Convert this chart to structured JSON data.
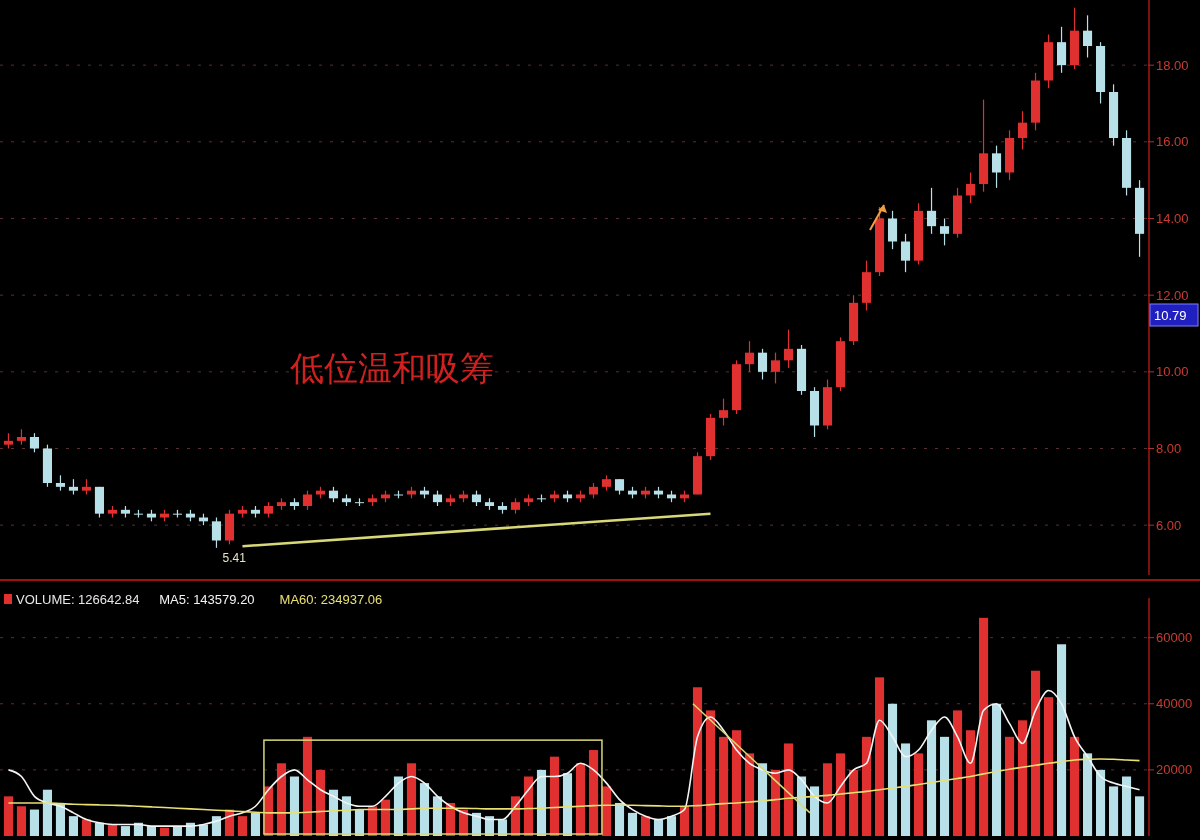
{
  "chart_data": [
    {
      "type": "candlestick",
      "categories": [
        null,
        null,
        null,
        null,
        null,
        null,
        null,
        null,
        null,
        null,
        null,
        null,
        null,
        null,
        null,
        null,
        null,
        null,
        null,
        null,
        null,
        null,
        null,
        null,
        null,
        null,
        null,
        null,
        null,
        null,
        null,
        null,
        null,
        null,
        null,
        null,
        null,
        null,
        null,
        null,
        null,
        null,
        null,
        null,
        null,
        null,
        null,
        null,
        null,
        null,
        null,
        null,
        null,
        null,
        null,
        null,
        null,
        null,
        null,
        null,
        null,
        null,
        null,
        null,
        null,
        null,
        null,
        null,
        null,
        null,
        null,
        null,
        null,
        null,
        null,
        null,
        null,
        null,
        null,
        null,
        null,
        null,
        null,
        null,
        null,
        null,
        null,
        null
      ],
      "ohlc": [
        [
          8.1,
          8.4,
          8.0,
          8.2
        ],
        [
          8.2,
          8.5,
          8.1,
          8.3
        ],
        [
          8.3,
          8.4,
          7.9,
          8.0
        ],
        [
          8.0,
          8.1,
          7.0,
          7.1
        ],
        [
          7.1,
          7.3,
          6.9,
          7.0
        ],
        [
          7.0,
          7.2,
          6.8,
          6.9
        ],
        [
          6.9,
          7.2,
          6.8,
          7.0
        ],
        [
          7.0,
          7.0,
          6.2,
          6.3
        ],
        [
          6.3,
          6.5,
          6.2,
          6.4
        ],
        [
          6.4,
          6.5,
          6.2,
          6.3
        ],
        [
          6.3,
          6.4,
          6.2,
          6.3
        ],
        [
          6.3,
          6.4,
          6.1,
          6.2
        ],
        [
          6.2,
          6.4,
          6.1,
          6.3
        ],
        [
          6.3,
          6.4,
          6.2,
          6.3
        ],
        [
          6.3,
          6.4,
          6.1,
          6.2
        ],
        [
          6.2,
          6.3,
          6.0,
          6.1
        ],
        [
          6.1,
          6.2,
          5.41,
          5.6
        ],
        [
          5.6,
          6.4,
          5.5,
          6.3
        ],
        [
          6.3,
          6.5,
          6.2,
          6.4
        ],
        [
          6.4,
          6.5,
          6.2,
          6.3
        ],
        [
          6.3,
          6.6,
          6.2,
          6.5
        ],
        [
          6.5,
          6.7,
          6.4,
          6.6
        ],
        [
          6.6,
          6.7,
          6.4,
          6.5
        ],
        [
          6.5,
          6.9,
          6.4,
          6.8
        ],
        [
          6.8,
          7.0,
          6.7,
          6.9
        ],
        [
          6.9,
          7.0,
          6.6,
          6.7
        ],
        [
          6.7,
          6.8,
          6.5,
          6.6
        ],
        [
          6.6,
          6.7,
          6.5,
          6.6
        ],
        [
          6.6,
          6.8,
          6.5,
          6.7
        ],
        [
          6.7,
          6.9,
          6.6,
          6.8
        ],
        [
          6.8,
          6.9,
          6.7,
          6.8
        ],
        [
          6.8,
          7.0,
          6.7,
          6.9
        ],
        [
          6.9,
          7.0,
          6.7,
          6.8
        ],
        [
          6.8,
          6.9,
          6.5,
          6.6
        ],
        [
          6.6,
          6.8,
          6.5,
          6.7
        ],
        [
          6.7,
          6.9,
          6.6,
          6.8
        ],
        [
          6.8,
          6.9,
          6.5,
          6.6
        ],
        [
          6.6,
          6.7,
          6.4,
          6.5
        ],
        [
          6.5,
          6.6,
          6.3,
          6.4
        ],
        [
          6.4,
          6.7,
          6.3,
          6.6
        ],
        [
          6.6,
          6.8,
          6.5,
          6.7
        ],
        [
          6.7,
          6.8,
          6.6,
          6.7
        ],
        [
          6.7,
          6.9,
          6.6,
          6.8
        ],
        [
          6.8,
          6.9,
          6.6,
          6.7
        ],
        [
          6.7,
          6.9,
          6.6,
          6.8
        ],
        [
          6.8,
          7.1,
          6.7,
          7.0
        ],
        [
          7.0,
          7.3,
          6.9,
          7.2
        ],
        [
          7.2,
          7.2,
          6.8,
          6.9
        ],
        [
          6.9,
          7.0,
          6.7,
          6.8
        ],
        [
          6.8,
          7.0,
          6.7,
          6.9
        ],
        [
          6.9,
          7.0,
          6.7,
          6.8
        ],
        [
          6.8,
          6.9,
          6.6,
          6.7
        ],
        [
          6.7,
          6.9,
          6.6,
          6.8
        ],
        [
          6.8,
          7.9,
          6.8,
          7.8
        ],
        [
          7.8,
          8.9,
          7.7,
          8.8
        ],
        [
          8.8,
          9.3,
          8.6,
          9.0
        ],
        [
          9.0,
          10.3,
          8.9,
          10.2
        ],
        [
          10.2,
          10.8,
          10.0,
          10.5
        ],
        [
          10.5,
          10.6,
          9.8,
          10.0
        ],
        [
          10.0,
          10.5,
          9.7,
          10.3
        ],
        [
          10.3,
          11.1,
          10.1,
          10.6
        ],
        [
          10.6,
          10.7,
          9.4,
          9.5
        ],
        [
          9.5,
          9.6,
          8.3,
          8.6
        ],
        [
          8.6,
          9.8,
          8.5,
          9.6
        ],
        [
          9.6,
          10.9,
          9.5,
          10.8
        ],
        [
          10.8,
          12.0,
          10.7,
          11.8
        ],
        [
          11.8,
          12.9,
          11.6,
          12.6
        ],
        [
          12.6,
          14.3,
          12.5,
          14.0
        ],
        [
          14.0,
          14.2,
          13.2,
          13.4
        ],
        [
          13.4,
          13.6,
          12.6,
          12.9
        ],
        [
          12.9,
          14.4,
          12.8,
          14.2
        ],
        [
          14.2,
          14.8,
          13.6,
          13.8
        ],
        [
          13.8,
          14.0,
          13.3,
          13.6
        ],
        [
          13.6,
          14.8,
          13.5,
          14.6
        ],
        [
          14.6,
          15.2,
          14.4,
          14.9
        ],
        [
          14.9,
          17.1,
          14.7,
          15.7
        ],
        [
          15.7,
          15.9,
          14.8,
          15.2
        ],
        [
          15.2,
          16.3,
          15.0,
          16.1
        ],
        [
          16.1,
          16.8,
          15.8,
          16.5
        ],
        [
          16.5,
          17.8,
          16.3,
          17.6
        ],
        [
          17.6,
          18.8,
          17.4,
          18.6
        ],
        [
          18.6,
          19.0,
          17.8,
          18.0
        ],
        [
          18.0,
          19.5,
          17.9,
          18.9
        ],
        [
          18.9,
          19.3,
          18.2,
          18.5
        ],
        [
          18.5,
          18.6,
          17.0,
          17.3
        ],
        [
          17.3,
          17.5,
          15.9,
          16.1
        ],
        [
          16.1,
          16.3,
          14.6,
          14.8
        ],
        [
          14.8,
          15.0,
          13.0,
          13.6
        ]
      ],
      "colors": [
        "#e03030",
        "#e03030",
        "#b8e0e8",
        "#b8e0e8",
        "#b8e0e8",
        "#b8e0e8",
        "#e03030",
        "#b8e0e8",
        "#e03030",
        "#b8e0e8",
        "#b8e0e8",
        "#b8e0e8",
        "#e03030",
        "#b8e0e8",
        "#b8e0e8",
        "#b8e0e8",
        "#b8e0e8",
        "#e03030",
        "#e03030",
        "#b8e0e8",
        "#e03030",
        "#e03030",
        "#b8e0e8",
        "#e03030",
        "#e03030",
        "#b8e0e8",
        "#b8e0e8",
        "#b8e0e8",
        "#e03030",
        "#e03030",
        "#b8e0e8",
        "#e03030",
        "#b8e0e8",
        "#b8e0e8",
        "#e03030",
        "#e03030",
        "#b8e0e8",
        "#b8e0e8",
        "#b8e0e8",
        "#e03030",
        "#e03030",
        "#b8e0e8",
        "#e03030",
        "#b8e0e8",
        "#e03030",
        "#e03030",
        "#e03030",
        "#b8e0e8",
        "#b8e0e8",
        "#e03030",
        "#b8e0e8",
        "#b8e0e8",
        "#e03030",
        "#e03030",
        "#e03030",
        "#e03030",
        "#e03030",
        "#e03030",
        "#b8e0e8",
        "#e03030",
        "#e03030",
        "#b8e0e8",
        "#b8e0e8",
        "#e03030",
        "#e03030",
        "#e03030",
        "#e03030",
        "#e03030",
        "#b8e0e8",
        "#b8e0e8",
        "#e03030",
        "#b8e0e8",
        "#b8e0e8",
        "#e03030",
        "#e03030",
        "#e03030",
        "#b8e0e8",
        "#e03030",
        "#e03030",
        "#e03030",
        "#e03030",
        "#b8e0e8",
        "#e03030",
        "#b8e0e8",
        "#b8e0e8",
        "#b8e0e8",
        "#b8e0e8",
        "#b8e0e8"
      ],
      "series": [
        {
          "type": "line",
          "color": "#d8d878",
          "values": [
            null,
            null,
            null,
            null,
            null,
            null,
            null,
            null,
            null,
            null,
            null,
            null,
            null,
            null,
            null,
            null,
            null,
            null,
            5.45,
            null,
            null,
            null,
            null,
            null,
            null,
            null,
            null,
            null,
            null,
            null,
            null,
            null,
            null,
            null,
            null,
            null,
            null,
            null,
            null,
            null,
            null,
            null,
            null,
            null,
            null,
            null,
            null,
            null,
            null,
            null,
            null,
            null,
            null,
            null,
            6.3,
            null,
            null,
            null,
            null,
            null,
            null,
            null,
            null,
            null,
            null,
            null,
            null,
            null,
            null,
            null,
            null,
            null,
            null,
            null,
            null,
            null,
            null,
            null,
            null,
            null,
            null,
            null,
            null,
            null,
            null,
            null,
            null,
            null
          ]
        }
      ],
      "ylim": [
        4.7,
        19.7
      ],
      "yticks": [
        {
          "value": 6,
          "label": "6.00"
        },
        {
          "value": 8,
          "label": "8.00"
        },
        {
          "value": 10,
          "label": "10.00"
        },
        {
          "value": 12,
          "label": "12.00"
        },
        {
          "value": 14,
          "label": "14.00"
        },
        {
          "value": 16,
          "label": "16.00"
        },
        {
          "value": 18,
          "label": "18.00"
        }
      ],
      "annotations": [
        "低位温和吸筹",
        "5.41",
        "10.79"
      ],
      "grid": "y",
      "tick_labels": "y"
    },
    {
      "type": "bar",
      "categories": [
        null,
        null,
        null,
        null,
        null,
        null,
        null,
        null,
        null,
        null,
        null,
        null,
        null,
        null,
        null,
        null,
        null,
        null,
        null,
        null,
        null,
        null,
        null,
        null,
        null,
        null,
        null,
        null,
        null,
        null,
        null,
        null,
        null,
        null,
        null,
        null,
        null,
        null,
        null,
        null,
        null,
        null,
        null,
        null,
        null,
        null,
        null,
        null,
        null,
        null,
        null,
        null,
        null,
        null,
        null,
        null,
        null,
        null,
        null,
        null,
        null,
        null,
        null,
        null,
        null,
        null,
        null,
        null,
        null,
        null,
        null,
        null,
        null,
        null,
        null,
        null,
        null,
        null,
        null,
        null,
        null,
        null,
        null,
        null,
        null,
        null,
        null,
        null
      ],
      "series": [
        {
          "type": "bar",
          "name": "VOLUME: 126642.84",
          "color": "#e8e8e8",
          "colors": [
            "#e03030",
            "#e03030",
            "#b8e0e8",
            "#b8e0e8",
            "#b8e0e8",
            "#b8e0e8",
            "#e03030",
            "#b8e0e8",
            "#e03030",
            "#b8e0e8",
            "#b8e0e8",
            "#b8e0e8",
            "#e03030",
            "#b8e0e8",
            "#b8e0e8",
            "#b8e0e8",
            "#b8e0e8",
            "#e03030",
            "#e03030",
            "#b8e0e8",
            "#e03030",
            "#e03030",
            "#b8e0e8",
            "#e03030",
            "#e03030",
            "#b8e0e8",
            "#b8e0e8",
            "#b8e0e8",
            "#e03030",
            "#e03030",
            "#b8e0e8",
            "#e03030",
            "#b8e0e8",
            "#b8e0e8",
            "#e03030",
            "#e03030",
            "#b8e0e8",
            "#b8e0e8",
            "#b8e0e8",
            "#e03030",
            "#e03030",
            "#b8e0e8",
            "#e03030",
            "#b8e0e8",
            "#e03030",
            "#e03030",
            "#e03030",
            "#b8e0e8",
            "#b8e0e8",
            "#e03030",
            "#b8e0e8",
            "#b8e0e8",
            "#e03030",
            "#e03030",
            "#e03030",
            "#e03030",
            "#e03030",
            "#e03030",
            "#b8e0e8",
            "#e03030",
            "#e03030",
            "#b8e0e8",
            "#b8e0e8",
            "#e03030",
            "#e03030",
            "#e03030",
            "#e03030",
            "#e03030",
            "#b8e0e8",
            "#b8e0e8",
            "#e03030",
            "#b8e0e8",
            "#b8e0e8",
            "#e03030",
            "#e03030",
            "#e03030",
            "#b8e0e8",
            "#e03030",
            "#e03030",
            "#e03030",
            "#e03030",
            "#b8e0e8",
            "#e03030",
            "#b8e0e8",
            "#b8e0e8",
            "#b8e0e8",
            "#b8e0e8",
            "#b8e0e8"
          ],
          "values": [
            12000,
            9000,
            8000,
            14000,
            10000,
            6000,
            5000,
            4000,
            3500,
            3000,
            4000,
            3000,
            2500,
            3000,
            4000,
            3500,
            6000,
            8000,
            6000,
            7000,
            15000,
            22000,
            18000,
            30000,
            20000,
            14000,
            12000,
            8000,
            9000,
            11000,
            18000,
            22000,
            16000,
            12000,
            10000,
            8000,
            7000,
            6000,
            5000,
            12000,
            18000,
            20000,
            24000,
            19000,
            22000,
            26000,
            15000,
            10000,
            7000,
            6000,
            5000,
            6000,
            9000,
            45000,
            38000,
            30000,
            32000,
            25000,
            22000,
            20000,
            28000,
            18000,
            15000,
            22000,
            25000,
            20000,
            30000,
            48000,
            40000,
            28000,
            25000,
            35000,
            30000,
            38000,
            32000,
            66000,
            40000,
            30000,
            35000,
            50000,
            42000,
            58000,
            30000,
            25000,
            20000,
            15000,
            18000,
            12000
          ]
        },
        {
          "type": "line",
          "name": "MA5: 143579.20",
          "color": "#f4f4f4",
          "values": [
            20000,
            18000,
            12000,
            10000,
            9000,
            7000,
            5000,
            4000,
            3500,
            3500,
            3500,
            3000,
            3000,
            3000,
            3000,
            3500,
            4500,
            6000,
            7000,
            9000,
            14000,
            18000,
            20000,
            17000,
            14000,
            12000,
            10000,
            9000,
            9000,
            12000,
            16000,
            18000,
            16000,
            12000,
            9000,
            7000,
            6000,
            5000,
            5000,
            9000,
            14000,
            18000,
            18000,
            19000,
            22000,
            20000,
            16000,
            11000,
            8000,
            6000,
            5000,
            6000,
            8000,
            30000,
            36000,
            32000,
            26000,
            22000,
            20000,
            19000,
            20000,
            17000,
            12000,
            10000,
            15000,
            20000,
            22000,
            35000,
            30000,
            24000,
            26000,
            32000,
            36000,
            30000,
            22000,
            38000,
            40000,
            34000,
            28000,
            38000,
            44000,
            40000,
            30000,
            24000,
            18000,
            16000,
            15000,
            14000
          ]
        },
        {
          "type": "line",
          "name": "MA60: 234937.06",
          "color": "#e8e070",
          "values": [
            10000,
            10000,
            10000,
            10000,
            9800,
            9600,
            9500,
            9400,
            9300,
            9200,
            9000,
            8800,
            8600,
            8400,
            8200,
            8000,
            7800,
            7600,
            7400,
            7200,
            7000,
            7000,
            7000,
            7200,
            7400,
            7600,
            7800,
            8000,
            8000,
            8000,
            8000,
            8200,
            8400,
            8400,
            8400,
            8400,
            8300,
            8200,
            8200,
            8200,
            8300,
            8400,
            8600,
            8800,
            9000,
            9200,
            9300,
            9300,
            9300,
            9200,
            9100,
            9000,
            9000,
            9200,
            9500,
            9800,
            10000,
            10300,
            10600,
            11000,
            11400,
            11700,
            12000,
            12300,
            12700,
            13100,
            13500,
            14000,
            14500,
            15000,
            15600,
            16200,
            16800,
            17400,
            18000,
            18800,
            19500,
            20200,
            20800,
            21400,
            22000,
            22500,
            23000,
            23200,
            23300,
            23200,
            23000,
            22800
          ]
        }
      ],
      "ylim": [
        0,
        72000
      ],
      "yticks": [
        20000,
        40000,
        60000
      ],
      "grid": "y",
      "tick_labels": "y",
      "legend": "top left"
    }
  ]
}
